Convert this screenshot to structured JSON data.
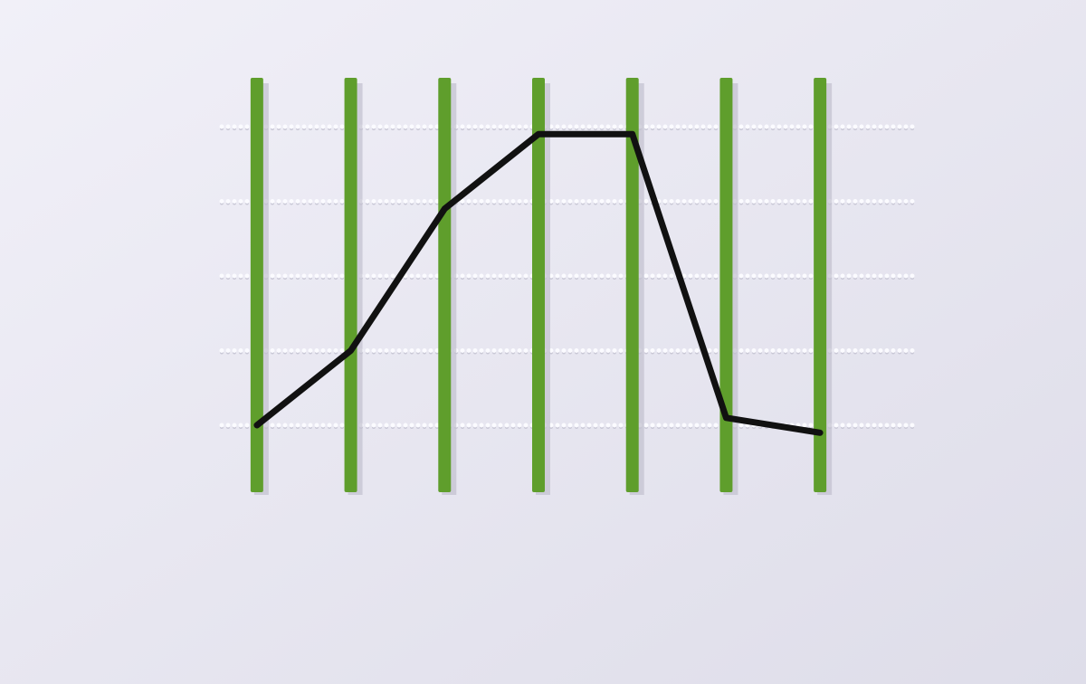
{
  "chart_data": {
    "type": "line",
    "x": [
      1,
      2,
      3,
      4,
      5,
      6,
      7
    ],
    "series": [
      {
        "color": "#111111",
        "values": [
          1,
          2,
          3.9,
          4.9,
          4.9,
          1.1,
          0.9
        ]
      }
    ],
    "xlim": [
      0.5,
      7.5
    ],
    "xticks": [
      1,
      2,
      3,
      4,
      5,
      6,
      7
    ],
    "ylim": [
      0,
      6
    ],
    "yticks": [
      1,
      2,
      3,
      4,
      5
    ],
    "grid": true,
    "stick_color": "#5f9e2c"
  }
}
